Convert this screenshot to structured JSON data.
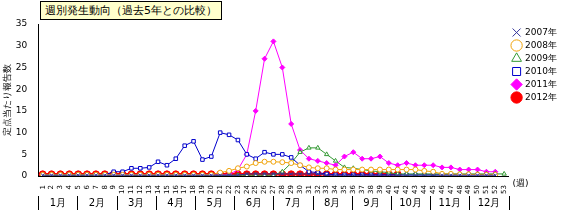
{
  "chart_data": {
    "type": "line",
    "title": "週別発生動向（過去5年との比較）",
    "y_label": "定点当たり報告数",
    "x_label": "(週)",
    "months": [
      "1月",
      "2月",
      "3月",
      "4月",
      "5月",
      "6月",
      "7月",
      "8月",
      "9月",
      "10月",
      "11月",
      "12月"
    ],
    "categories": [
      1,
      2,
      3,
      4,
      5,
      6,
      7,
      8,
      9,
      10,
      11,
      12,
      13,
      14,
      15,
      16,
      17,
      18,
      19,
      20,
      21,
      22,
      23,
      24,
      25,
      26,
      27,
      28,
      29,
      30,
      31,
      32,
      33,
      34,
      35,
      36,
      37,
      38,
      39,
      40,
      41,
      42,
      43,
      44,
      45,
      46,
      47,
      48,
      49,
      50,
      51,
      52,
      53
    ],
    "ylim": [
      0,
      35
    ],
    "yticks": [
      0,
      5,
      10,
      15,
      20,
      25,
      30,
      35
    ],
    "grid": false,
    "legend": "right",
    "series": [
      {
        "name": "2007年",
        "color": "#333399",
        "marker": "x",
        "line_style": "solid",
        "values": [
          0.2,
          0.2,
          0.2,
          0.2,
          0.2,
          0.2,
          0.2,
          0.2,
          0.2,
          0.2,
          0.2,
          0.2,
          0.2,
          0.2,
          0.2,
          0.2,
          0.2,
          0.2,
          0.2,
          0.2,
          0.2,
          0.2,
          0.2,
          0.5,
          0.5,
          0.5,
          0.5,
          0.5,
          0.5,
          0.5,
          0.5,
          0.5,
          0.2,
          0.2,
          0.2,
          0.2,
          0.2,
          0.2,
          0.2,
          0.2,
          0.2,
          0.2,
          0.2,
          0.2,
          0.2,
          0.2,
          0.2,
          0.2,
          0.2,
          0.2,
          0.2,
          0.2,
          null
        ]
      },
      {
        "name": "2008年",
        "color": "#f0a30a",
        "marker": "circle",
        "line_style": "solid",
        "values": [
          0.3,
          0.3,
          0.3,
          0.3,
          0.3,
          0.3,
          0.3,
          0.3,
          0.3,
          0.3,
          0.3,
          0.3,
          0.3,
          0.3,
          0.3,
          0.3,
          0.3,
          0.3,
          0.3,
          0.3,
          0.8,
          1.2,
          1.8,
          2.2,
          3,
          3.3,
          3.3,
          3.2,
          3,
          2.5,
          2,
          1.8,
          1.8,
          1.5,
          1.5,
          1.5,
          1.5,
          1.5,
          1.5,
          1.5,
          1.5,
          1.5,
          1.5,
          1.2,
          1,
          0.5,
          0.5,
          0.4,
          0.4,
          0.3,
          0.3,
          0.3,
          null
        ]
      },
      {
        "name": "2009年",
        "color": "#339933",
        "marker": "triangle",
        "line_style": "solid",
        "values": [
          0.2,
          0.2,
          0.2,
          0.2,
          0.2,
          0.2,
          0.2,
          0.2,
          0.2,
          0.2,
          0.2,
          0.2,
          0.2,
          0.2,
          0.2,
          0.2,
          0.2,
          0.2,
          0.2,
          0.2,
          0.2,
          0.2,
          0.2,
          0.2,
          0.2,
          0.2,
          0.2,
          1,
          3,
          5.5,
          6.5,
          6.5,
          5,
          3.5,
          2,
          1.8,
          1.5,
          1.2,
          1,
          0.8,
          0.5,
          0.5,
          0.5,
          0.5,
          0.5,
          0.5,
          0.5,
          0.5,
          0.5,
          0.5,
          0.5,
          0.5,
          0.5
        ]
      },
      {
        "name": "2010年",
        "color": "#0000cc",
        "marker": "square",
        "line_style": "solid",
        "values": [
          0.3,
          0.3,
          0.3,
          0.3,
          0.3,
          0.3,
          0.3,
          0.3,
          1,
          1,
          1.8,
          1.8,
          2,
          3.3,
          2.5,
          4,
          7,
          8,
          3.8,
          4.5,
          10,
          9.5,
          8.3,
          5,
          4,
          5.5,
          5,
          5,
          4.3,
          2.5,
          1,
          0.8,
          0.5,
          0.3,
          0.3,
          0.3,
          0.3,
          0.3,
          0.3,
          0.3,
          0.3,
          0.3,
          0.3,
          0.3,
          0.3,
          0.3,
          0.3,
          0.3,
          0.3,
          0.3,
          0.3,
          0.3,
          null
        ]
      },
      {
        "name": "2011年",
        "color": "#ff00ff",
        "marker": "diamond",
        "line_style": "solid",
        "values": [
          0.3,
          0.3,
          0.3,
          0.3,
          0.3,
          0.3,
          0.3,
          0.3,
          0.3,
          0.3,
          0.3,
          0.3,
          0.3,
          0.3,
          0.3,
          0.3,
          0.3,
          0.3,
          0.3,
          0.3,
          0.3,
          0.3,
          1.5,
          5,
          15,
          27,
          31,
          25,
          12,
          6,
          4,
          3.5,
          3,
          2.5,
          4.5,
          5.5,
          4,
          4,
          4.5,
          3,
          2.5,
          3,
          2.5,
          2.5,
          2.5,
          2,
          2,
          1.5,
          1.5,
          1.5,
          1,
          1,
          null
        ]
      },
      {
        "name": "2012年",
        "color": "#ff0000",
        "marker": "circle_filled",
        "line_style": "thick",
        "values": [
          0.4,
          0.4,
          0.4,
          0.4,
          0.4,
          0.4,
          0.4,
          0.4,
          0.4,
          0.4,
          0.4,
          0.4,
          0.4,
          0.4,
          0.4,
          0.4,
          0.4,
          0.4,
          0.4,
          0.4,
          0.4,
          0.4,
          0.4,
          0.4,
          0.4,
          0.4,
          0.4,
          0.4,
          0.4,
          0.4,
          0.4,
          0.4,
          0.4,
          0.4,
          0.4,
          0.4,
          0.4,
          0.4,
          0.4,
          0.4,
          0.4,
          null,
          null,
          null,
          null,
          null,
          null,
          null,
          null,
          null,
          null,
          null,
          null
        ]
      }
    ]
  }
}
